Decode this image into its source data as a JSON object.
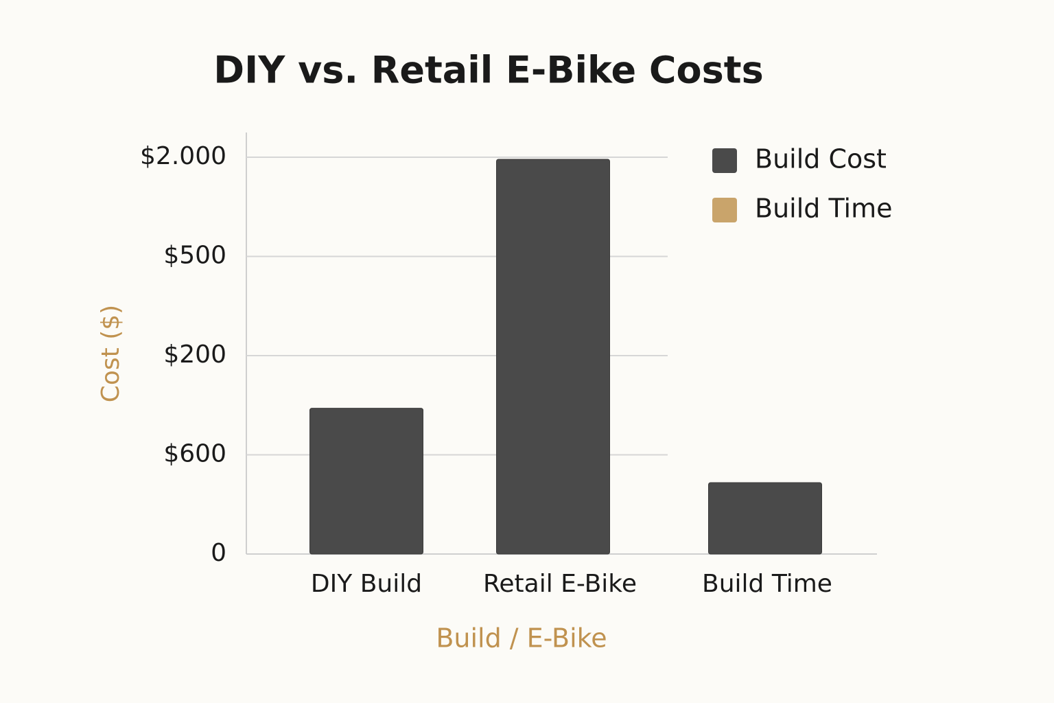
{
  "chart_data": {
    "type": "bar",
    "title": "DIY vs. Retail E-Bike Costs",
    "x_label": "Build / E-Bike",
    "y_label": "Cost ($)",
    "categories": [
      "DIY Build",
      "Retail E-Bike",
      "Build Time"
    ],
    "series": [
      {
        "name": "Build Cost",
        "color": "#4a4a4a",
        "values": [
          735,
          1990,
          360
        ]
      },
      {
        "name": "Build Time",
        "color": "#c9a46b",
        "values": [
          null,
          null,
          null
        ]
      }
    ],
    "ylim": [
      0,
      2125
    ],
    "yticks": [
      0,
      {
        "value": 600,
        "label": "$600"
      },
      {
        "value": 200,
        "label": "$200"
      },
      {
        "value": 500,
        "label": "$500"
      },
      {
        "value": 2000,
        "label": "$2.000"
      }
    ],
    "grid": true,
    "legend": "top-right"
  }
}
